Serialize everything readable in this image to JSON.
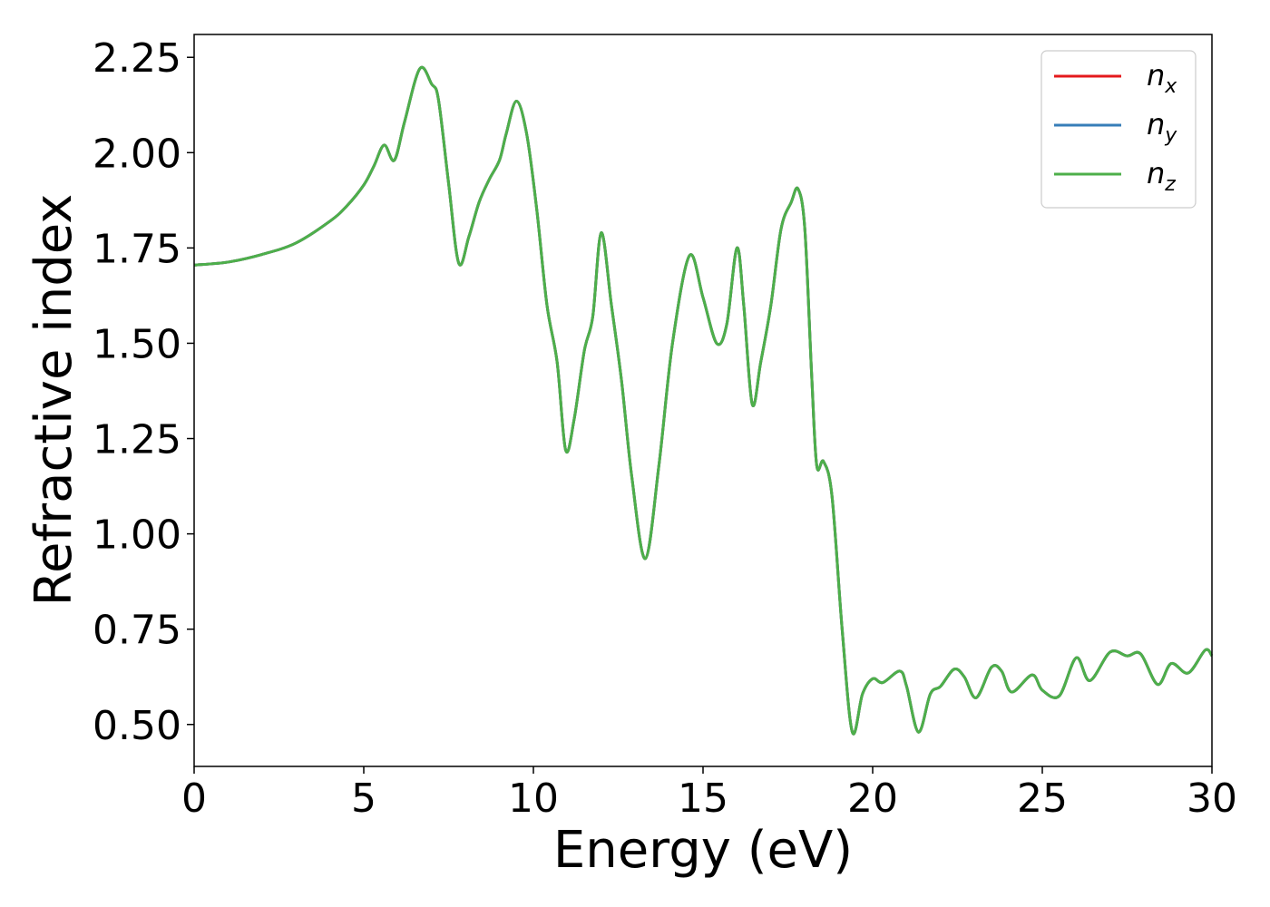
{
  "chart_data": {
    "type": "line",
    "xlabel": "Energy (eV)",
    "ylabel": "Refractive index",
    "xlim": [
      0,
      30
    ],
    "ylim": [
      0.39,
      2.31
    ],
    "xticks": [
      0,
      5,
      10,
      15,
      20,
      25,
      30
    ],
    "xtick_labels": [
      "0",
      "5",
      "10",
      "15",
      "20",
      "25",
      "30"
    ],
    "yticks": [
      0.5,
      0.75,
      1.0,
      1.25,
      1.5,
      1.75,
      2.0,
      2.25
    ],
    "ytick_labels": [
      "0.50",
      "0.75",
      "1.00",
      "1.25",
      "1.50",
      "1.75",
      "2.00",
      "2.25"
    ],
    "grid": false,
    "legend_position": "top-right",
    "x": [
      0,
      1,
      2,
      3,
      4,
      4.5,
      5,
      5.3,
      5.6,
      5.9,
      6.2,
      6.65,
      7.0,
      7.2,
      7.5,
      7.8,
      8.1,
      8.4,
      8.7,
      9.0,
      9.2,
      9.5,
      9.8,
      10.1,
      10.4,
      10.7,
      10.95,
      11.2,
      11.5,
      11.75,
      12.0,
      12.3,
      12.6,
      12.9,
      13.3,
      13.7,
      14.1,
      14.6,
      15.0,
      15.4,
      15.7,
      16.0,
      16.2,
      16.45,
      16.7,
      17.0,
      17.3,
      17.6,
      17.8,
      18.0,
      18.2,
      18.35,
      18.55,
      18.8,
      19.1,
      19.4,
      19.7,
      20.0,
      20.3,
      20.8,
      21.0,
      21.35,
      21.7,
      22.0,
      22.4,
      22.7,
      23.05,
      23.5,
      23.8,
      24.1,
      24.7,
      25.0,
      25.5,
      26.0,
      26.4,
      27.0,
      27.5,
      27.9,
      28.4,
      28.8,
      29.3,
      29.8,
      30.0
    ],
    "series": [
      {
        "name": "n_x",
        "color": "#e41a1c",
        "values": [
          1.705,
          1.713,
          1.733,
          1.763,
          1.82,
          1.86,
          1.915,
          1.965,
          2.02,
          1.98,
          2.08,
          2.22,
          2.18,
          2.14,
          1.92,
          1.71,
          1.78,
          1.87,
          1.93,
          1.98,
          2.05,
          2.135,
          2.05,
          1.85,
          1.6,
          1.45,
          1.22,
          1.3,
          1.48,
          1.57,
          1.79,
          1.6,
          1.4,
          1.15,
          0.935,
          1.18,
          1.5,
          1.73,
          1.62,
          1.5,
          1.55,
          1.75,
          1.6,
          1.34,
          1.45,
          1.6,
          1.8,
          1.87,
          1.905,
          1.8,
          1.42,
          1.18,
          1.19,
          1.1,
          0.75,
          0.48,
          0.58,
          0.62,
          0.61,
          0.64,
          0.6,
          0.48,
          0.58,
          0.6,
          0.645,
          0.625,
          0.57,
          0.65,
          0.64,
          0.585,
          0.63,
          0.59,
          0.575,
          0.675,
          0.615,
          0.69,
          0.68,
          0.685,
          0.605,
          0.66,
          0.635,
          0.695,
          0.68
        ]
      },
      {
        "name": "n_y",
        "color": "#377eb8",
        "values": [
          1.705,
          1.713,
          1.733,
          1.763,
          1.82,
          1.86,
          1.915,
          1.965,
          2.02,
          1.98,
          2.08,
          2.22,
          2.18,
          2.14,
          1.92,
          1.71,
          1.78,
          1.87,
          1.93,
          1.98,
          2.05,
          2.135,
          2.05,
          1.85,
          1.6,
          1.45,
          1.22,
          1.3,
          1.48,
          1.57,
          1.79,
          1.6,
          1.4,
          1.15,
          0.935,
          1.18,
          1.5,
          1.73,
          1.62,
          1.5,
          1.55,
          1.75,
          1.6,
          1.34,
          1.45,
          1.6,
          1.8,
          1.87,
          1.905,
          1.8,
          1.42,
          1.18,
          1.19,
          1.1,
          0.75,
          0.48,
          0.58,
          0.62,
          0.61,
          0.64,
          0.6,
          0.48,
          0.58,
          0.6,
          0.645,
          0.625,
          0.57,
          0.65,
          0.64,
          0.585,
          0.63,
          0.59,
          0.575,
          0.675,
          0.615,
          0.69,
          0.68,
          0.685,
          0.605,
          0.66,
          0.635,
          0.695,
          0.68
        ]
      },
      {
        "name": "n_z",
        "color": "#4daf4a",
        "values": [
          1.705,
          1.713,
          1.733,
          1.763,
          1.82,
          1.86,
          1.915,
          1.965,
          2.02,
          1.98,
          2.08,
          2.22,
          2.18,
          2.14,
          1.92,
          1.71,
          1.78,
          1.87,
          1.93,
          1.98,
          2.05,
          2.135,
          2.05,
          1.85,
          1.6,
          1.45,
          1.22,
          1.3,
          1.48,
          1.57,
          1.79,
          1.6,
          1.4,
          1.15,
          0.935,
          1.18,
          1.5,
          1.73,
          1.62,
          1.5,
          1.55,
          1.75,
          1.6,
          1.34,
          1.45,
          1.6,
          1.8,
          1.87,
          1.905,
          1.8,
          1.42,
          1.18,
          1.19,
          1.1,
          0.75,
          0.48,
          0.58,
          0.62,
          0.61,
          0.64,
          0.6,
          0.48,
          0.58,
          0.6,
          0.645,
          0.625,
          0.57,
          0.65,
          0.64,
          0.585,
          0.63,
          0.59,
          0.575,
          0.675,
          0.615,
          0.69,
          0.68,
          0.685,
          0.605,
          0.66,
          0.635,
          0.695,
          0.68
        ]
      }
    ],
    "legend": [
      {
        "base": "n",
        "sub": "x",
        "color": "#e41a1c"
      },
      {
        "base": "n",
        "sub": "y",
        "color": "#377eb8"
      },
      {
        "base": "n",
        "sub": "z",
        "color": "#4daf4a"
      }
    ]
  }
}
